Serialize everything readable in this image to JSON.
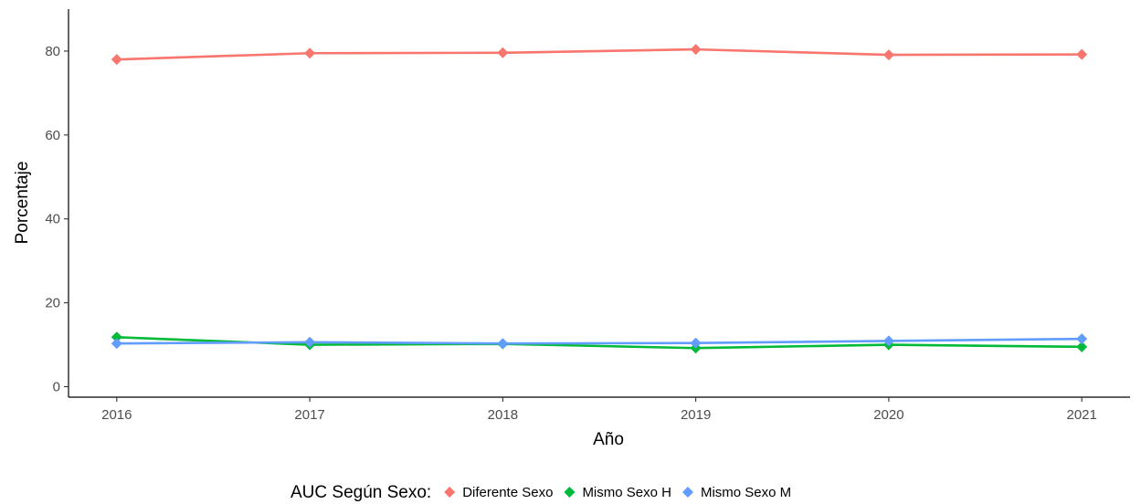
{
  "chart_data": {
    "type": "line",
    "x": [
      2016,
      2017,
      2018,
      2019,
      2020,
      2021
    ],
    "xlabel": "Año",
    "ylabel": "Porcentaje",
    "ylim": [
      -2.5,
      90
    ],
    "yticks": [
      0,
      20,
      40,
      60,
      80
    ],
    "grid": false,
    "legend": {
      "title": "AUC Según Sexo:",
      "position": "bottom"
    },
    "series": [
      {
        "name": "Diferente Sexo",
        "color": "#F8766D",
        "marker": "diamond",
        "values": [
          78.0,
          79.5,
          79.6,
          80.4,
          79.1,
          79.2
        ]
      },
      {
        "name": "Mismo Sexo H",
        "color": "#00BA38",
        "marker": "diamond",
        "values": [
          11.8,
          10.0,
          10.2,
          9.2,
          10.0,
          9.5
        ]
      },
      {
        "name": "Mismo Sexo M",
        "color": "#619CFF",
        "marker": "diamond",
        "values": [
          10.3,
          10.6,
          10.3,
          10.4,
          10.9,
          11.4
        ]
      }
    ]
  }
}
